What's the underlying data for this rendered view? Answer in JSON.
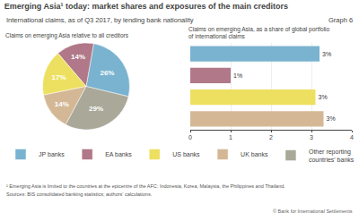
{
  "title": "Emerging Asia¹ today: market shares and exposures of the main creditors",
  "subtitle": "International claims, as of Q3 2017, by lending bank nationality",
  "annotations": [
    "Graph 6",
    "¹ Emerging Asia is limited to the countries at the epicentre of the AFC: Indonesia, Korea, Malaysia, the Philippines and Thailand.",
    "Sources: BIS consolidated banking statistics; authors' calculations.",
    "© Bank for International Settlements"
  ],
  "chart_data": [
    {
      "type": "pie",
      "title": "Claims on emerging Asia relative to all creditors",
      "categories": [
        "JP banks",
        "EA banks",
        "US banks",
        "UK banks",
        "Other reporting\ncountries' banks"
      ],
      "values": [
        26,
        14,
        17,
        14,
        29
      ],
      "value_labels": [
        "26%",
        "14%",
        "17%",
        "14%",
        "29%"
      ],
      "colors": [
        "#7ab3d0",
        "#b07888",
        "#ede060",
        "#d4b896",
        "#aaa898"
      ],
      "data_labels": true,
      "legend": "bottom left"
    },
    {
      "type": "bar",
      "title": "Claims on emerging Asia, as a share of global portfolio\nof international claims",
      "orientation": "horizontal",
      "categories": [
        "JP banks",
        "EA banks",
        "US banks",
        "UK banks"
      ],
      "values": [
        3.2,
        1.0,
        3.1,
        3.3
      ],
      "value_labels": [
        "3%",
        "1%",
        "3%",
        "3%"
      ],
      "colors": [
        "#7ab3d0",
        "#b07888",
        "#ede060",
        "#d4b896"
      ],
      "data_labels": true,
      "xlim": [
        0,
        4
      ],
      "xticks": [
        0,
        1,
        2,
        3,
        4
      ],
      "grid": true,
      "tick_labels": "x"
    }
  ]
}
